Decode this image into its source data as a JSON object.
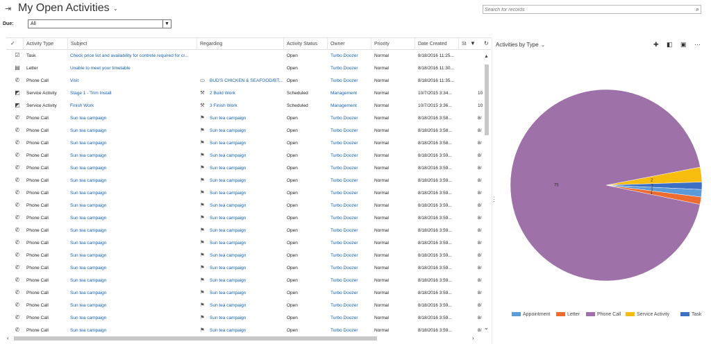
{
  "header": {
    "title": "My Open Activities",
    "search_placeholder": "Search for records"
  },
  "filter": {
    "due_label": "Due:",
    "due_value": "All"
  },
  "grid": {
    "columns": [
      "Activity Type",
      "Subject",
      "Regarding",
      "Activity Status",
      "Owner",
      "Priority",
      "Date Created",
      "St"
    ],
    "rows": [
      {
        "type": "Task",
        "icon": "task-icon",
        "subject": "Check price list and availability for contrete required for cr...",
        "regarding": "",
        "reg_icon": "",
        "status": "Open",
        "owner": "Turbo Doozer",
        "priority": "Normal",
        "date": "8/18/2016 11:25...",
        "extra": ""
      },
      {
        "type": "Letter",
        "icon": "letter-icon",
        "subject": "Unable to meet your timetable",
        "regarding": "",
        "reg_icon": "",
        "status": "Open",
        "owner": "Turbo Doozer",
        "priority": "Normal",
        "date": "8/18/2016 11:30...",
        "extra": ""
      },
      {
        "type": "Phone Call",
        "icon": "phone-icon",
        "subject": "Visit",
        "regarding": "BUD'S CHICKEN & SEAFOOD/BT...",
        "reg_icon": "account-icon",
        "status": "Open",
        "owner": "Turbo Doozer",
        "priority": "Normal",
        "date": "8/18/2016 11:35...",
        "extra": ""
      },
      {
        "type": "Service Activity",
        "icon": "service-activity-icon",
        "subject": "Stage 1 - Trim Install",
        "regarding": "2 Build Work",
        "reg_icon": "wrench-icon",
        "status": "Scheduled",
        "owner": "Management",
        "priority": "Normal",
        "date": "10/7/2015 3:34...",
        "extra": "10"
      },
      {
        "type": "Service Activity",
        "icon": "service-activity-icon",
        "subject": "Finish Work",
        "regarding": "3 Finish Work",
        "reg_icon": "wrench-icon",
        "status": "Scheduled",
        "owner": "Management",
        "priority": "Normal",
        "date": "10/7/2015 3:36...",
        "extra": "10/"
      },
      {
        "type": "Phone Call",
        "icon": "phone-icon",
        "subject": "Sun tea campaign",
        "regarding": "Sun tea campaign",
        "reg_icon": "campaign-icon",
        "status": "Open",
        "owner": "Turbo Doozer",
        "priority": "Normal",
        "date": "8/18/2016 3:58...",
        "extra": "8/"
      },
      {
        "type": "Phone Call",
        "icon": "phone-icon",
        "subject": "Sun tea campaign",
        "regarding": "Sun tea campaign",
        "reg_icon": "campaign-icon",
        "status": "Open",
        "owner": "Turbo Doozer",
        "priority": "Normal",
        "date": "8/18/2016 3:58...",
        "extra": "8/"
      },
      {
        "type": "Phone Call",
        "icon": "phone-icon",
        "subject": "Sun tea campaign",
        "regarding": "Sun tea campaign",
        "reg_icon": "campaign-icon",
        "status": "Open",
        "owner": "Turbo Doozer",
        "priority": "Normal",
        "date": "8/18/2016 3:58...",
        "extra": "8/"
      },
      {
        "type": "Phone Call",
        "icon": "phone-icon",
        "subject": "Sun tea campaign",
        "regarding": "Sun tea campaign",
        "reg_icon": "campaign-icon",
        "status": "Open",
        "owner": "Turbo Doozer",
        "priority": "Normal",
        "date": "8/18/2016 3:59...",
        "extra": "8/"
      },
      {
        "type": "Phone Call",
        "icon": "phone-icon",
        "subject": "Sun tea campaign",
        "regarding": "Sun tea campaign",
        "reg_icon": "campaign-icon",
        "status": "Open",
        "owner": "Turbo Doozer",
        "priority": "Normal",
        "date": "8/18/2016 3:59...",
        "extra": "8/"
      },
      {
        "type": "Phone Call",
        "icon": "phone-icon",
        "subject": "Sun tea campaign",
        "regarding": "Sun tea campaign",
        "reg_icon": "campaign-icon",
        "status": "Open",
        "owner": "Turbo Doozer",
        "priority": "Normal",
        "date": "8/18/2016 3:59...",
        "extra": "8/"
      },
      {
        "type": "Phone Call",
        "icon": "phone-icon",
        "subject": "Sun tea campaign",
        "regarding": "Sun tea campaign",
        "reg_icon": "campaign-icon",
        "status": "Open",
        "owner": "Turbo Doozer",
        "priority": "Normal",
        "date": "8/18/2016 3:59...",
        "extra": "8/"
      },
      {
        "type": "Phone Call",
        "icon": "phone-icon",
        "subject": "Sun tea campaign",
        "regarding": "Sun tea campaign",
        "reg_icon": "campaign-icon",
        "status": "Open",
        "owner": "Turbo Doozer",
        "priority": "Normal",
        "date": "8/18/2016 3:59...",
        "extra": "8/"
      },
      {
        "type": "Phone Call",
        "icon": "phone-icon",
        "subject": "Sun tea campaign",
        "regarding": "Sun tea campaign",
        "reg_icon": "campaign-icon",
        "status": "Open",
        "owner": "Turbo Doozer",
        "priority": "Normal",
        "date": "8/18/2016 3:59...",
        "extra": "8/"
      },
      {
        "type": "Phone Call",
        "icon": "phone-icon",
        "subject": "Sun tea campaign",
        "regarding": "Sun tea campaign",
        "reg_icon": "campaign-icon",
        "status": "Open",
        "owner": "Turbo Doozer",
        "priority": "Normal",
        "date": "8/18/2016 3:59...",
        "extra": "8/"
      },
      {
        "type": "Phone Call",
        "icon": "phone-icon",
        "subject": "Sun tea campaign",
        "regarding": "Sun tea campaign",
        "reg_icon": "campaign-icon",
        "status": "Open",
        "owner": "Turbo Doozer",
        "priority": "Normal",
        "date": "8/18/2016 3:59...",
        "extra": "8/"
      },
      {
        "type": "Phone Call",
        "icon": "phone-icon",
        "subject": "Sun tea campaign",
        "regarding": "Sun tea campaign",
        "reg_icon": "campaign-icon",
        "status": "Open",
        "owner": "Turbo Doozer",
        "priority": "Normal",
        "date": "8/18/2016 3:59...",
        "extra": "8/"
      },
      {
        "type": "Phone Call",
        "icon": "phone-icon",
        "subject": "Sun tea campaign",
        "regarding": "Sun tea campaign",
        "reg_icon": "campaign-icon",
        "status": "Open",
        "owner": "Turbo Doozer",
        "priority": "Normal",
        "date": "8/18/2016 3:59...",
        "extra": "8/"
      },
      {
        "type": "Phone Call",
        "icon": "phone-icon",
        "subject": "Sun tea campaign",
        "regarding": "Sun tea campaign",
        "reg_icon": "campaign-icon",
        "status": "Open",
        "owner": "Turbo Doozer",
        "priority": "Normal",
        "date": "8/18/2016 3:59...",
        "extra": "8/"
      },
      {
        "type": "Phone Call",
        "icon": "phone-icon",
        "subject": "Sun tea campaign",
        "regarding": "Sun tea campaign",
        "reg_icon": "campaign-icon",
        "status": "Open",
        "owner": "Turbo Doozer",
        "priority": "Normal",
        "date": "8/18/2016 3:59...",
        "extra": "8/"
      },
      {
        "type": "Phone Call",
        "icon": "phone-icon",
        "subject": "Sun tea campaign",
        "regarding": "Sun tea campaign",
        "reg_icon": "campaign-icon",
        "status": "Open",
        "owner": "Turbo Doozer",
        "priority": "Normal",
        "date": "8/18/2016 3:59...",
        "extra": "8/"
      },
      {
        "type": "Phone Call",
        "icon": "phone-icon",
        "subject": "Sun tea campaign",
        "regarding": "Sun tea campaign",
        "reg_icon": "campaign-icon",
        "status": "Open",
        "owner": "Turbo Doozer",
        "priority": "Normal",
        "date": "8/18/2016 3:59...",
        "extra": "8/"
      },
      {
        "type": "Phone Call",
        "icon": "phone-icon",
        "subject": "Sun tea campaign",
        "regarding": "Sun tea campaign",
        "reg_icon": "campaign-icon",
        "status": "Open",
        "owner": "Turbo Doozer",
        "priority": "Normal",
        "date": "8/18/2016 3:59...",
        "extra": "8/"
      }
    ]
  },
  "chart_panel": {
    "title": "Activities by Type"
  },
  "chart_data": {
    "type": "pie",
    "slices": [
      {
        "label": "Phone Call",
        "value": 75,
        "color": "#9e71a8",
        "data_label": "75"
      },
      {
        "label": "Service Activity",
        "value": 2,
        "color": "#f6bd0f",
        "data_label": "2"
      },
      {
        "label": "Task",
        "value": 1,
        "color": "#3a6fc4",
        "data_label": "1"
      },
      {
        "label": "Appointment",
        "value": 1,
        "color": "#5c9bd9",
        "data_label": "1"
      },
      {
        "label": "Letter",
        "value": 1,
        "color": "#ed6c2e",
        "data_label": "1"
      }
    ],
    "legend": [
      {
        "label": "Appointment",
        "color": "#5c9bd9"
      },
      {
        "label": "Letter",
        "color": "#ed6c2e"
      },
      {
        "label": "Phone Call",
        "color": "#9e71a8"
      },
      {
        "label": "Service Activity",
        "color": "#f6bd0f"
      },
      {
        "label": "Task",
        "color": "#3a6fc4"
      }
    ],
    "legend_position": "bottom"
  },
  "icons": {
    "task-icon": "☑",
    "letter-icon": "▤",
    "phone-icon": "✆",
    "service-activity-icon": "◩",
    "account-icon": "▭",
    "wrench-icon": "⚒",
    "campaign-icon": "⚑"
  }
}
